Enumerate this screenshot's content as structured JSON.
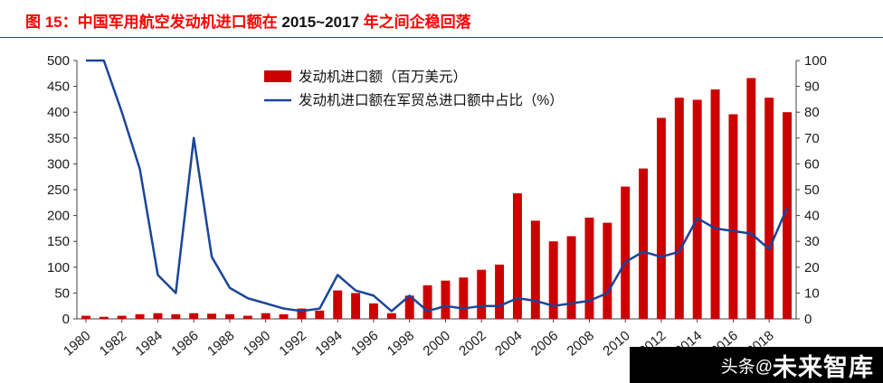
{
  "title": {
    "part1": "图 15：中国军用航空发动机进口额在 ",
    "part2": "2015~2017",
    "part3": " 年之间企稳回落"
  },
  "watermark": {
    "prefix": "头条@",
    "name": "未来智库"
  },
  "colors": {
    "bar": "#cc0000",
    "line": "#1b4598",
    "axis": "#404040",
    "tick_text": "#1a1a1a"
  },
  "chart_data": {
    "type": "bar",
    "subtype": "bar+line combo, dual axis",
    "x": [
      1980,
      1981,
      1982,
      1983,
      1984,
      1985,
      1986,
      1987,
      1988,
      1989,
      1990,
      1991,
      1992,
      1993,
      1994,
      1995,
      1996,
      1997,
      1998,
      1999,
      2000,
      2001,
      2002,
      2003,
      2004,
      2005,
      2006,
      2007,
      2008,
      2009,
      2010,
      2011,
      2012,
      2013,
      2014,
      2015,
      2016,
      2017,
      2018,
      2019
    ],
    "series": [
      {
        "name": "发动机进口额（百万美元）",
        "type": "bar",
        "axis": "left",
        "color": "#cc0000",
        "values": [
          6,
          4,
          6,
          9,
          11,
          9,
          11,
          10,
          9,
          6,
          11,
          9,
          20,
          16,
          55,
          50,
          30,
          11,
          45,
          65,
          74,
          80,
          95,
          105,
          243,
          190,
          150,
          160,
          196,
          186,
          256,
          291,
          389,
          428,
          424,
          444,
          396,
          466,
          428,
          400
        ]
      },
      {
        "name": "发动机进口额在军贸总进口额中占比（%）",
        "type": "line",
        "axis": "right",
        "color": "#1b4598",
        "values": [
          100,
          100,
          80,
          58,
          17,
          10,
          70,
          24,
          12,
          8,
          6,
          4,
          3,
          4,
          17,
          11,
          9,
          3,
          9,
          3,
          5,
          4,
          5,
          5,
          8,
          7,
          5,
          6,
          7,
          10,
          22,
          26,
          24,
          26,
          39,
          35,
          34,
          33,
          27,
          43
        ]
      }
    ],
    "left_axis": {
      "min": 0,
      "max": 500,
      "step": 50
    },
    "right_axis": {
      "min": 0,
      "max": 100,
      "step": 10
    },
    "x_tick_interval": 2,
    "legend_position": "top-center",
    "grid": false,
    "title": "中国军用航空发动机进口额在 2015~2017 年之间企稳回落",
    "xlabel": "",
    "ylabel_left": "百万美元",
    "ylabel_right": "%"
  }
}
